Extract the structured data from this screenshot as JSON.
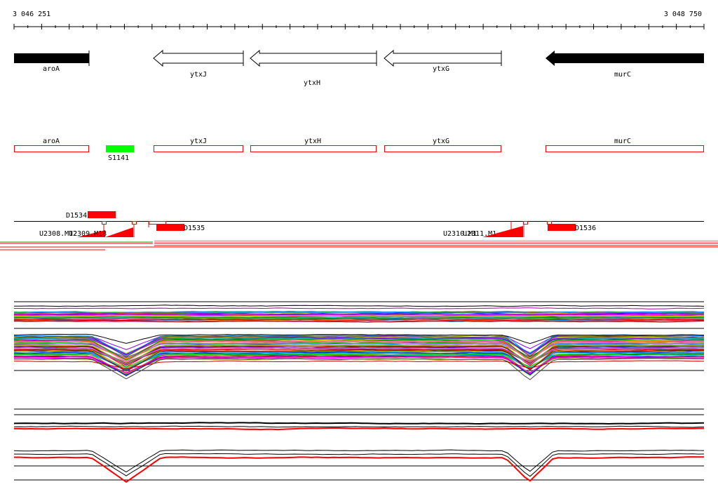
{
  "coords": {
    "start": "3 046 251",
    "end": "3 048 750"
  },
  "genes": [
    {
      "name": "aroA",
      "filled": true,
      "dir": "right"
    },
    {
      "name": "ytxJ",
      "filled": false,
      "dir": "left"
    },
    {
      "name": "ytxH",
      "filled": false,
      "dir": "left"
    },
    {
      "name": "ytxG",
      "filled": false,
      "dir": "left"
    },
    {
      "name": "murC",
      "filled": true,
      "dir": "left"
    }
  ],
  "regions": [
    {
      "name": "aroA"
    },
    {
      "name": "ytxJ"
    },
    {
      "name": "ytxH"
    },
    {
      "name": "ytxG"
    },
    {
      "name": "murC"
    }
  ],
  "sites": [
    {
      "name": "S1141",
      "color": "#00ff00"
    }
  ],
  "features": [
    {
      "name": "D1534"
    },
    {
      "name": "D1535"
    },
    {
      "name": "D1536"
    },
    {
      "name": "U2308.M12"
    },
    {
      "name": "U2309.M18"
    },
    {
      "name": "U2310.M1"
    },
    {
      "name": "U2311.M1"
    }
  ],
  "colors": {
    "feature": "#ff0000",
    "site": "#00ff00",
    "gene_fill": "#000000",
    "region_outline": "#ff0000"
  }
}
